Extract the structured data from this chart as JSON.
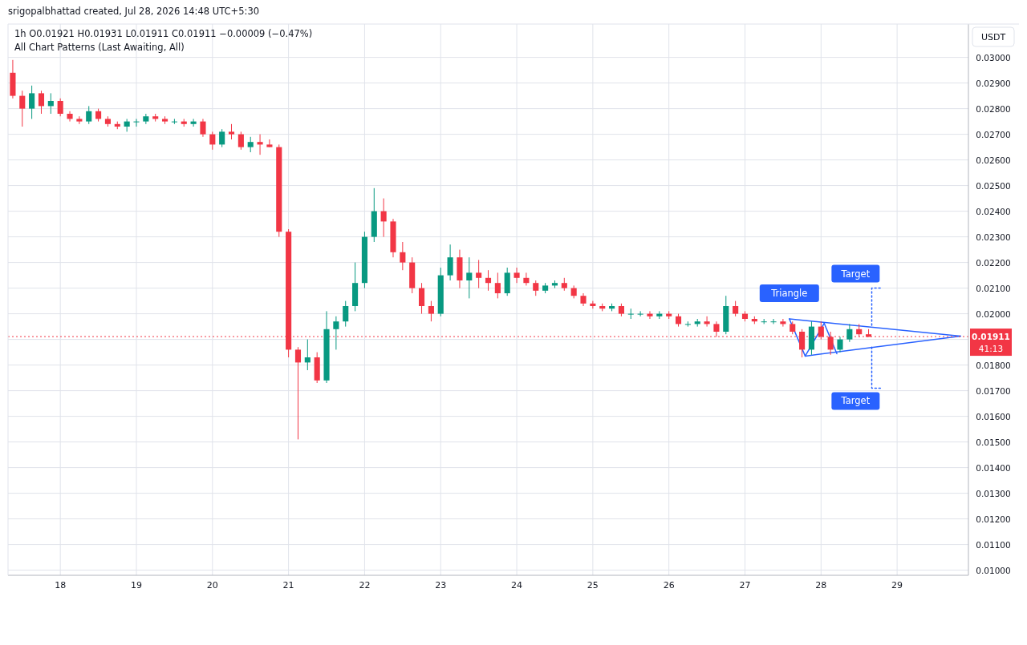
{
  "chart_data": {
    "type": "candlestick",
    "title": "1h  O0.01921  H0.01931  L0.01911  C0.01911  −0.00009 (−0.47%)",
    "subtitle": "All Chart Patterns (Last Awaiting, All)",
    "ylabel": "USDT",
    "annotations": [
      "srigopalbhattad created, Jul 28, 2026 14:48 UTC+5:30",
      "41:13",
      {
        "text": "Triangle",
        "x": "2026-07-27T14:00",
        "y": 0.0198
      },
      {
        "text": "Target",
        "x": "2026-07-28T19:00",
        "y": 0.021
      },
      {
        "text": "Target",
        "x": "2026-07-28T19:00",
        "y": 0.0171
      }
    ],
    "xlim": [
      "2026-07-17T07:30",
      "2026-07-29T22:30"
    ],
    "xticks": [
      {
        "value": "2026-07-18",
        "label": "18"
      },
      {
        "value": "2026-07-19",
        "label": "19"
      },
      {
        "value": "2026-07-20",
        "label": "20"
      },
      {
        "value": "2026-07-21",
        "label": "21"
      },
      {
        "value": "2026-07-22",
        "label": "22"
      },
      {
        "value": "2026-07-23",
        "label": "23"
      },
      {
        "value": "2026-07-24",
        "label": "24"
      },
      {
        "value": "2026-07-25",
        "label": "25"
      },
      {
        "value": "2026-07-26",
        "label": "26"
      },
      {
        "value": "2026-07-27",
        "label": "27"
      },
      {
        "value": "2026-07-28",
        "label": "28"
      },
      {
        "value": "2026-07-29",
        "label": "29"
      }
    ],
    "ylim": [
      0.0098,
      0.0313
    ],
    "yticks": [
      {
        "value": 0.01,
        "label": "0.01000"
      },
      {
        "value": 0.011,
        "label": "0.01100"
      },
      {
        "value": 0.012,
        "label": "0.01200"
      },
      {
        "value": 0.013,
        "label": "0.01300"
      },
      {
        "value": 0.014,
        "label": "0.01400"
      },
      {
        "value": 0.015,
        "label": "0.01500"
      },
      {
        "value": 0.016,
        "label": "0.01600"
      },
      {
        "value": 0.017,
        "label": "0.01700"
      },
      {
        "value": 0.018,
        "label": "0.01800"
      },
      {
        "value": 0.019,
        "label": null
      },
      {
        "value": 0.02,
        "label": "0.02000"
      },
      {
        "value": 0.021,
        "label": "0.02100"
      },
      {
        "value": 0.022,
        "label": "0.02200"
      },
      {
        "value": 0.023,
        "label": "0.02300"
      },
      {
        "value": 0.024,
        "label": "0.02400"
      },
      {
        "value": 0.025,
        "label": "0.02500"
      },
      {
        "value": 0.026,
        "label": "0.02600"
      },
      {
        "value": 0.027,
        "label": "0.02700"
      },
      {
        "value": 0.028,
        "label": "0.02800"
      },
      {
        "value": 0.029,
        "label": "0.02900"
      },
      {
        "value": 0.03,
        "label": "0.03000"
      }
    ],
    "grid": true,
    "ref_lines": [
      {
        "axis": "y",
        "value": 0.01911,
        "label": "0.01911",
        "color": "#f23645",
        "line_style": "dotted"
      }
    ],
    "series": [
      {
        "x": [
          "2026-07-17T09:00",
          "2026-07-17T12:00",
          "2026-07-17T15:00",
          "2026-07-17T18:00",
          "2026-07-17T21:00",
          "2026-07-18T00:00",
          "2026-07-18T03:00",
          "2026-07-18T06:00",
          "2026-07-18T09:00",
          "2026-07-18T12:00",
          "2026-07-18T15:00",
          "2026-07-18T18:00",
          "2026-07-18T21:00",
          "2026-07-19T00:00",
          "2026-07-19T03:00",
          "2026-07-19T06:00",
          "2026-07-19T09:00",
          "2026-07-19T12:00",
          "2026-07-19T15:00",
          "2026-07-19T18:00",
          "2026-07-19T21:00",
          "2026-07-20T00:00",
          "2026-07-20T03:00",
          "2026-07-20T06:00",
          "2026-07-20T09:00",
          "2026-07-20T12:00",
          "2026-07-20T15:00",
          "2026-07-20T18:00",
          "2026-07-20T21:00",
          "2026-07-21T00:00",
          "2026-07-21T03:00",
          "2026-07-21T06:00",
          "2026-07-21T09:00",
          "2026-07-21T12:00",
          "2026-07-21T15:00",
          "2026-07-21T18:00",
          "2026-07-21T21:00",
          "2026-07-22T00:00",
          "2026-07-22T03:00",
          "2026-07-22T06:00",
          "2026-07-22T09:00",
          "2026-07-22T12:00",
          "2026-07-22T15:00",
          "2026-07-22T18:00",
          "2026-07-22T21:00",
          "2026-07-23T00:00",
          "2026-07-23T03:00",
          "2026-07-23T06:00",
          "2026-07-23T09:00",
          "2026-07-23T12:00",
          "2026-07-23T15:00",
          "2026-07-23T18:00",
          "2026-07-23T21:00",
          "2026-07-24T00:00",
          "2026-07-24T03:00",
          "2026-07-24T06:00",
          "2026-07-24T09:00",
          "2026-07-24T12:00",
          "2026-07-24T15:00",
          "2026-07-24T18:00",
          "2026-07-24T21:00",
          "2026-07-25T00:00",
          "2026-07-25T03:00",
          "2026-07-25T06:00",
          "2026-07-25T09:00",
          "2026-07-25T12:00",
          "2026-07-25T15:00",
          "2026-07-25T18:00",
          "2026-07-25T21:00",
          "2026-07-26T00:00",
          "2026-07-26T03:00",
          "2026-07-26T06:00",
          "2026-07-26T09:00",
          "2026-07-26T12:00",
          "2026-07-26T15:00",
          "2026-07-26T18:00",
          "2026-07-26T21:00",
          "2026-07-27T00:00",
          "2026-07-27T03:00",
          "2026-07-27T06:00",
          "2026-07-27T09:00",
          "2026-07-27T12:00",
          "2026-07-27T15:00",
          "2026-07-27T18:00",
          "2026-07-27T21:00",
          "2026-07-28T00:00",
          "2026-07-28T03:00",
          "2026-07-28T06:00",
          "2026-07-28T09:00",
          "2026-07-28T12:00",
          "2026-07-28T15:00"
        ],
        "ohlc": [
          [
            0.0294,
            0.0299,
            0.0284,
            0.0285
          ],
          [
            0.0285,
            0.0287,
            0.0273,
            0.028
          ],
          [
            0.028,
            0.0289,
            0.0276,
            0.0286
          ],
          [
            0.0286,
            0.0287,
            0.0278,
            0.0281
          ],
          [
            0.0281,
            0.0286,
            0.0278,
            0.0283
          ],
          [
            0.0283,
            0.0284,
            0.0277,
            0.0278
          ],
          [
            0.0278,
            0.0279,
            0.0275,
            0.0276
          ],
          [
            0.0276,
            0.0277,
            0.0274,
            0.0275
          ],
          [
            0.0275,
            0.0281,
            0.0274,
            0.0279
          ],
          [
            0.0279,
            0.028,
            0.0275,
            0.0276
          ],
          [
            0.0276,
            0.0277,
            0.0273,
            0.0274
          ],
          [
            0.0274,
            0.0275,
            0.0272,
            0.0273
          ],
          [
            0.0273,
            0.0276,
            0.0271,
            0.0275
          ],
          [
            0.0275,
            0.0276,
            0.0273,
            0.0275
          ],
          [
            0.0275,
            0.0278,
            0.0274,
            0.0277
          ],
          [
            0.0277,
            0.0278,
            0.0275,
            0.0276
          ],
          [
            0.0276,
            0.0277,
            0.0274,
            0.0275
          ],
          [
            0.0275,
            0.0276,
            0.0274,
            0.0275
          ],
          [
            0.0275,
            0.0276,
            0.0273,
            0.0274
          ],
          [
            0.0274,
            0.0276,
            0.0273,
            0.0275
          ],
          [
            0.0275,
            0.0276,
            0.0269,
            0.027
          ],
          [
            0.027,
            0.0271,
            0.0264,
            0.0266
          ],
          [
            0.0266,
            0.0272,
            0.0265,
            0.0271
          ],
          [
            0.0271,
            0.0274,
            0.0268,
            0.027
          ],
          [
            0.027,
            0.0271,
            0.0264,
            0.0265
          ],
          [
            0.0265,
            0.0269,
            0.0263,
            0.0267
          ],
          [
            0.0267,
            0.027,
            0.0262,
            0.0266
          ],
          [
            0.0266,
            0.0268,
            0.0265,
            0.0265
          ],
          [
            0.0265,
            0.0266,
            0.023,
            0.0232
          ],
          [
            0.0232,
            0.0233,
            0.0183,
            0.0186
          ],
          [
            0.0186,
            0.0187,
            0.0151,
            0.0181
          ],
          [
            0.0181,
            0.019,
            0.0178,
            0.0183
          ],
          [
            0.0183,
            0.0185,
            0.0173,
            0.0174
          ],
          [
            0.0174,
            0.0201,
            0.0173,
            0.0194
          ],
          [
            0.0194,
            0.0199,
            0.0186,
            0.0197
          ],
          [
            0.0197,
            0.0205,
            0.0195,
            0.0203
          ],
          [
            0.0203,
            0.022,
            0.0201,
            0.0212
          ],
          [
            0.0212,
            0.0232,
            0.021,
            0.023
          ],
          [
            0.023,
            0.0249,
            0.0228,
            0.024
          ],
          [
            0.024,
            0.0245,
            0.023,
            0.0236
          ],
          [
            0.0236,
            0.0237,
            0.0222,
            0.0224
          ],
          [
            0.0224,
            0.0228,
            0.0217,
            0.022
          ],
          [
            0.022,
            0.0222,
            0.0208,
            0.021
          ],
          [
            0.021,
            0.0212,
            0.02,
            0.0203
          ],
          [
            0.0203,
            0.0205,
            0.0197,
            0.02
          ],
          [
            0.02,
            0.0218,
            0.0199,
            0.0215
          ],
          [
            0.0215,
            0.0227,
            0.0213,
            0.0222
          ],
          [
            0.0222,
            0.0225,
            0.021,
            0.0213
          ],
          [
            0.0213,
            0.0222,
            0.0206,
            0.0216
          ],
          [
            0.0216,
            0.0221,
            0.021,
            0.0214
          ],
          [
            0.0214,
            0.0217,
            0.0209,
            0.0212
          ],
          [
            0.0212,
            0.0216,
            0.0206,
            0.0208
          ],
          [
            0.0208,
            0.0218,
            0.0207,
            0.0216
          ],
          [
            0.0216,
            0.0218,
            0.0212,
            0.0214
          ],
          [
            0.0214,
            0.0216,
            0.0211,
            0.0212
          ],
          [
            0.0212,
            0.0213,
            0.0207,
            0.0209
          ],
          [
            0.0209,
            0.0212,
            0.0208,
            0.0211
          ],
          [
            0.0211,
            0.0213,
            0.021,
            0.0212
          ],
          [
            0.0212,
            0.0214,
            0.0209,
            0.021
          ],
          [
            0.021,
            0.0211,
            0.0206,
            0.0207
          ],
          [
            0.0207,
            0.0208,
            0.0203,
            0.0204
          ],
          [
            0.0204,
            0.0205,
            0.0202,
            0.0203
          ],
          [
            0.0203,
            0.0204,
            0.0201,
            0.0202
          ],
          [
            0.0202,
            0.0204,
            0.0201,
            0.0203
          ],
          [
            0.0203,
            0.0204,
            0.0199,
            0.02
          ],
          [
            0.02,
            0.0202,
            0.0198,
            0.02
          ],
          [
            0.02,
            0.0201,
            0.0199,
            0.02
          ],
          [
            0.02,
            0.0201,
            0.0198,
            0.0199
          ],
          [
            0.0199,
            0.0201,
            0.0198,
            0.02
          ],
          [
            0.02,
            0.0201,
            0.0198,
            0.0199
          ],
          [
            0.0199,
            0.02,
            0.0195,
            0.0196
          ],
          [
            0.0196,
            0.0197,
            0.0195,
            0.0196
          ],
          [
            0.0196,
            0.0198,
            0.0195,
            0.0197
          ],
          [
            0.0197,
            0.0199,
            0.0195,
            0.0196
          ],
          [
            0.0196,
            0.0197,
            0.0191,
            0.0193
          ],
          [
            0.0193,
            0.0207,
            0.0192,
            0.0203
          ],
          [
            0.0203,
            0.0205,
            0.0199,
            0.02
          ],
          [
            0.02,
            0.0201,
            0.0197,
            0.0198
          ],
          [
            0.0198,
            0.0199,
            0.0196,
            0.0197
          ],
          [
            0.0197,
            0.0198,
            0.0196,
            0.0197
          ],
          [
            0.0197,
            0.0198,
            0.0196,
            0.0197
          ],
          [
            0.0197,
            0.0198,
            0.0195,
            0.0196
          ],
          [
            0.0196,
            0.0197,
            0.0192,
            0.0193
          ],
          [
            0.0193,
            0.0194,
            0.0183,
            0.0186
          ],
          [
            0.0186,
            0.0197,
            0.0184,
            0.0195
          ],
          [
            0.0195,
            0.0197,
            0.019,
            0.0191
          ],
          [
            0.0191,
            0.0193,
            0.0184,
            0.0186
          ],
          [
            0.0186,
            0.0191,
            0.0185,
            0.019
          ],
          [
            0.019,
            0.0196,
            0.0189,
            0.0194
          ],
          [
            0.0194,
            0.0196,
            0.0191,
            0.0192
          ],
          [
            0.0192,
            0.0194,
            0.0191,
            0.0191
          ]
        ]
      },
      {
        "type": "line",
        "color": "#2962ff",
        "line_style": "solid",
        "x": [
          "2026-07-27T14:00",
          "2026-07-29T20:00"
        ],
        "values": [
          0.0198,
          0.01913
        ]
      },
      {
        "type": "line",
        "color": "#2962ff",
        "line_style": "solid",
        "x": [
          "2026-07-27T19:00",
          "2026-07-29T20:00"
        ],
        "values": [
          0.01835,
          0.01913
        ]
      },
      {
        "type": "line",
        "color": "#2962ff",
        "line_style": "solid",
        "x": [
          "2026-07-27T14:00",
          "2026-07-27T19:00",
          "2026-07-28T01:00",
          "2026-07-28T05:00"
        ],
        "values": [
          0.0198,
          0.01835,
          0.01963,
          0.01844
        ]
      },
      {
        "type": "line",
        "color": "#2962ff",
        "line_style": "dotted",
        "x": [
          "2026-07-28T16:00",
          "2026-07-28T16:00",
          "2026-07-28T19:00"
        ],
        "values": [
          0.01955,
          0.021,
          0.021
        ]
      },
      {
        "type": "line",
        "color": "#2962ff",
        "line_style": "dotted",
        "x": [
          "2026-07-28T16:00",
          "2026-07-28T16:00",
          "2026-07-28T19:00"
        ],
        "values": [
          0.0187,
          0.0171,
          0.0171
        ]
      }
    ]
  }
}
